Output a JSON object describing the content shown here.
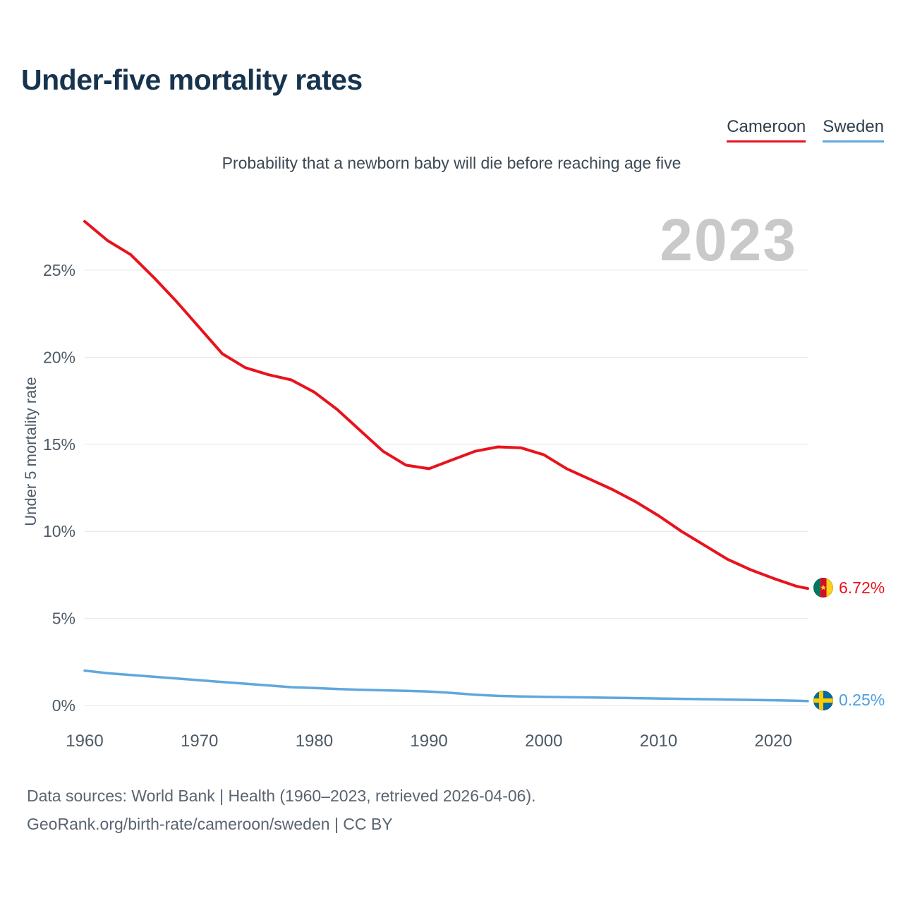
{
  "header": {
    "title": "Under-five mortality rates",
    "subtitle": "Probability that a newborn baby will die before reaching age five"
  },
  "legend": {
    "items": [
      {
        "label": "Cameroon",
        "color": "#e8131d"
      },
      {
        "label": "Sweden",
        "color": "#5fa8dc"
      }
    ]
  },
  "chart": {
    "watermark": "2023"
  },
  "end_labels": [
    {
      "country": "Cameroon",
      "value": "6.72%",
      "color": "#e8131d",
      "flag": "cameroon-flag"
    },
    {
      "country": "Sweden",
      "value": "0.25%",
      "color": "#4a9fdc",
      "flag": "sweden-flag"
    }
  ],
  "footer": {
    "line1": "Data sources: World Bank | Health (1960–2023, retrieved 2026-04-06).",
    "line2": "GeoRank.org/birth-rate/cameroon/sweden | CC BY"
  },
  "chart_data": {
    "type": "line",
    "title": "Under-five mortality rates",
    "subtitle": "Probability that a newborn baby will die before reaching age five",
    "xlabel": "",
    "ylabel": "Under 5 mortality rate",
    "watermark_year": "2023",
    "x_range": [
      1960,
      2023
    ],
    "y_range": [
      0,
      28
    ],
    "x_ticks": [
      1960,
      1970,
      1980,
      1990,
      2000,
      2010,
      2020
    ],
    "y_ticks": [
      0,
      5,
      10,
      15,
      20,
      25
    ],
    "y_tick_suffix": "%",
    "grid": "horizontal",
    "legend_position": "top-right",
    "series": [
      {
        "name": "Cameroon",
        "color": "#e8131d",
        "end_label": "6.72%",
        "x": [
          1960,
          1962,
          1964,
          1966,
          1968,
          1970,
          1972,
          1974,
          1976,
          1978,
          1980,
          1982,
          1984,
          1986,
          1988,
          1990,
          1992,
          1994,
          1996,
          1998,
          2000,
          2002,
          2004,
          2006,
          2008,
          2010,
          2012,
          2014,
          2016,
          2018,
          2020,
          2022,
          2023
        ],
        "y": [
          27.8,
          26.7,
          25.9,
          24.6,
          23.2,
          21.7,
          20.2,
          19.4,
          19.0,
          18.7,
          18.0,
          17.0,
          15.8,
          14.6,
          13.8,
          13.6,
          14.1,
          14.6,
          14.85,
          14.8,
          14.4,
          13.6,
          13.0,
          12.4,
          11.7,
          10.9,
          10.0,
          9.2,
          8.4,
          7.8,
          7.3,
          6.85,
          6.72
        ]
      },
      {
        "name": "Sweden",
        "color": "#5fa8dc",
        "end_label": "0.25%",
        "x": [
          1960,
          1962,
          1964,
          1966,
          1968,
          1970,
          1972,
          1974,
          1976,
          1978,
          1980,
          1982,
          1984,
          1986,
          1988,
          1990,
          1992,
          1994,
          1996,
          1998,
          2000,
          2002,
          2004,
          2006,
          2008,
          2010,
          2012,
          2014,
          2016,
          2018,
          2020,
          2022,
          2023
        ],
        "y": [
          2.0,
          1.85,
          1.75,
          1.65,
          1.55,
          1.45,
          1.35,
          1.25,
          1.15,
          1.05,
          1.0,
          0.95,
          0.9,
          0.87,
          0.84,
          0.8,
          0.72,
          0.62,
          0.55,
          0.52,
          0.5,
          0.48,
          0.46,
          0.44,
          0.42,
          0.4,
          0.38,
          0.36,
          0.34,
          0.32,
          0.3,
          0.27,
          0.25
        ]
      }
    ]
  }
}
